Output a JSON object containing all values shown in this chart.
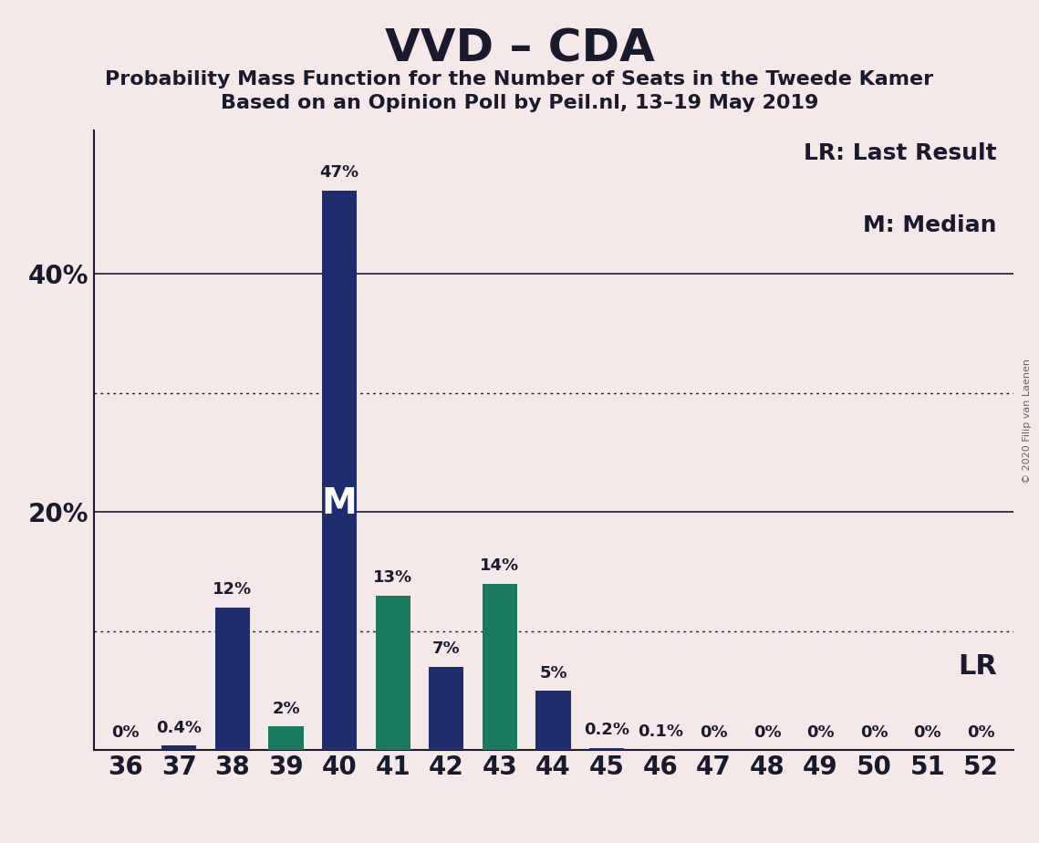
{
  "title": "VVD – CDA",
  "subtitle1": "Probability Mass Function for the Number of Seats in the Tweede Kamer",
  "subtitle2": "Based on an Opinion Poll by Peil.nl, 13–19 May 2019",
  "copyright": "© 2020 Filip van Laenen",
  "categories": [
    36,
    37,
    38,
    39,
    40,
    41,
    42,
    43,
    44,
    45,
    46,
    47,
    48,
    49,
    50,
    51,
    52
  ],
  "values": [
    0,
    0.4,
    12,
    2,
    47,
    13,
    7,
    14,
    5,
    0.2,
    0.1,
    0,
    0,
    0,
    0,
    0,
    0
  ],
  "colors": [
    "#1e2d6e",
    "#1e2d6e",
    "#1e2d6e",
    "#1a7a5e",
    "#1e2d6e",
    "#1a7a5e",
    "#1e2d6e",
    "#1a7a5e",
    "#1e2d6e",
    "#1e2d6e",
    "#1e2d6e",
    "#1e2d6e",
    "#1e2d6e",
    "#1e2d6e",
    "#1e2d6e",
    "#1e2d6e",
    "#1e2d6e"
  ],
  "labels": [
    "0%",
    "0.4%",
    "12%",
    "2%",
    "47%",
    "13%",
    "7%",
    "14%",
    "5%",
    "0.2%",
    "0.1%",
    "0%",
    "0%",
    "0%",
    "0%",
    "0%",
    "0%"
  ],
  "median_bar_index": 4,
  "lr_bar_index": 8,
  "median_label": "M",
  "lr_label": "LR",
  "legend_lr": "LR: Last Result",
  "legend_m": "M: Median",
  "background_color": "#f5e8e8",
  "navy_color": "#1e2d6e",
  "teal_color": "#1a7a5e",
  "bar_width": 0.65,
  "ylim_max": 52,
  "solid_grid_lines": [
    20,
    40
  ],
  "dotted_grid_lines": [
    10,
    30
  ],
  "title_fontsize": 36,
  "subtitle_fontsize": 16,
  "tick_fontsize": 20,
  "label_fontsize": 13,
  "legend_fontsize": 18,
  "median_label_fontsize": 28,
  "lr_label_fontsize": 22,
  "text_color": "#1a1a2e"
}
